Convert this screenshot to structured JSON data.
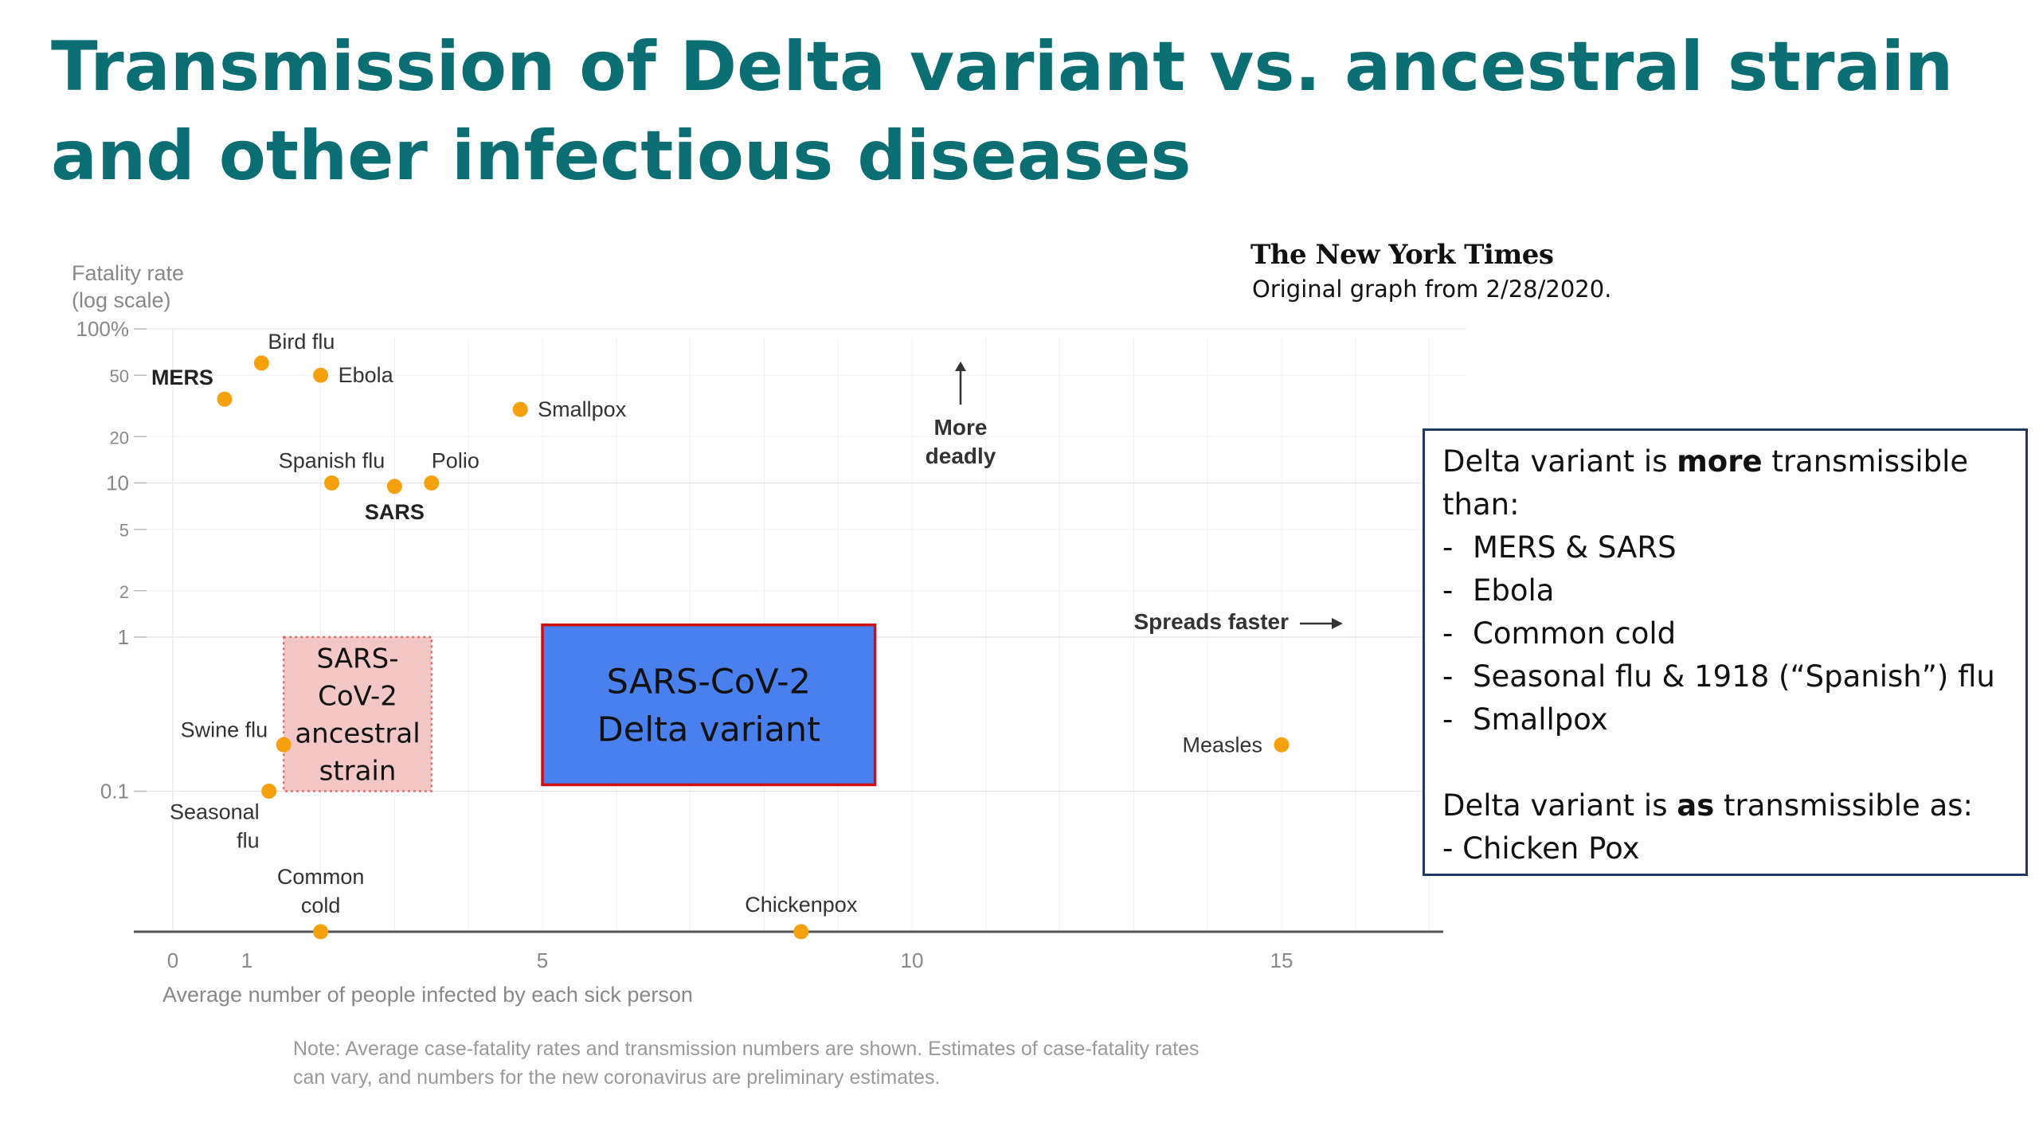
{
  "slide": {
    "title": "Transmission of Delta variant vs. ancestral strain and other infectious diseases",
    "logo_text": "The New York Times",
    "source_note": "Original graph from 2/28/2020."
  },
  "callout": {
    "intro_prefix": "Delta variant is ",
    "intro_bold": "more",
    "intro_suffix": " transmissible than:",
    "items": [
      "MERS & SARS",
      "Ebola",
      "Common cold",
      "Seasonal flu & 1918 (“Spanish”) flu",
      "Smallpox"
    ],
    "dash": "-",
    "second_prefix": "Delta variant is ",
    "second_bold": "as",
    "second_suffix": " transmissible as:",
    "second_item": "- Chicken Pox"
  },
  "chart_data": {
    "type": "scatter",
    "ylabel_lines": [
      "Fatality rate",
      "(log scale)"
    ],
    "xlabel": "Average number of people infected by each sick person",
    "x_ticks": [
      0,
      1,
      5,
      10,
      15
    ],
    "x_tick_labels": [
      "0",
      "1",
      "5",
      "10",
      "15"
    ],
    "xlim": [
      0,
      17.5
    ],
    "y_scale": "log",
    "y_ticks": [
      100,
      50,
      20,
      10,
      5,
      2,
      1,
      0.1
    ],
    "y_tick_labels": [
      "100%",
      "50",
      "20",
      "10",
      "5",
      "2",
      "1",
      "0.1"
    ],
    "points": [
      {
        "name": "MERS",
        "x": 0.7,
        "y": 35,
        "bold": true
      },
      {
        "name": "Bird flu",
        "x": 1.2,
        "y": 60,
        "bold": false
      },
      {
        "name": "Ebola",
        "x": 2.0,
        "y": 50,
        "bold": false
      },
      {
        "name": "Smallpox",
        "x": 4.7,
        "y": 30,
        "bold": false
      },
      {
        "name": "Spanish flu",
        "x": 2.15,
        "y": 10,
        "bold": false
      },
      {
        "name": "SARS",
        "x": 3.0,
        "y": 9.5,
        "bold": true
      },
      {
        "name": "Polio",
        "x": 3.5,
        "y": 10,
        "bold": false
      },
      {
        "name": "Swine flu",
        "x": 1.5,
        "y": 0.2,
        "bold": false
      },
      {
        "name": "Seasonal flu",
        "x": 1.3,
        "y": 0.1,
        "bold": false
      },
      {
        "name": "Measles",
        "x": 15,
        "y": 0.2,
        "bold": false
      },
      {
        "name": "Common cold",
        "x": 2.0,
        "y": null,
        "bold": false
      },
      {
        "name": "Chickenpox",
        "x": 8.5,
        "y": null,
        "bold": false
      }
    ],
    "regions": [
      {
        "name": "SARS-CoV-2 ancestral strain",
        "label_lines": [
          "SARS-",
          "CoV-2",
          "ancestral",
          "strain"
        ],
        "x": [
          1.5,
          3.5
        ],
        "y": [
          0.1,
          1
        ],
        "fill": "#f4c7c7",
        "stroke": "#e07070"
      },
      {
        "name": "SARS-CoV-2 Delta variant",
        "label_lines": [
          "SARS-CoV-2",
          "Delta variant"
        ],
        "x": [
          5,
          9.5
        ],
        "y": [
          0.11,
          1.2
        ],
        "fill": "#4a80ee",
        "stroke": "#d01010"
      }
    ],
    "annotations": {
      "more_deadly": [
        "More",
        "deadly"
      ],
      "spreads_faster": "Spreads faster"
    },
    "note_lines": [
      "Note: Average case-fatality rates and transmission numbers are shown. Estimates of case-fatality rates",
      "can vary, and numbers for the new coronavirus are preliminary estimates."
    ],
    "colors": {
      "point": "#f5a10e",
      "text": "#333333",
      "muted": "#888888",
      "axis": "#555555"
    }
  }
}
